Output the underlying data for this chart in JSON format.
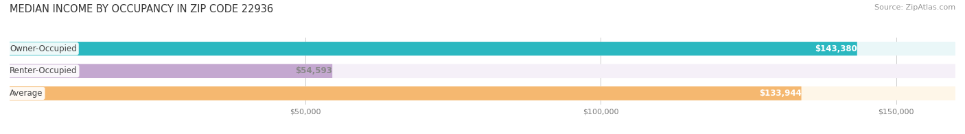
{
  "title": "MEDIAN INCOME BY OCCUPANCY IN ZIP CODE 22936",
  "source": "Source: ZipAtlas.com",
  "categories": [
    "Owner-Occupied",
    "Renter-Occupied",
    "Average"
  ],
  "values": [
    143380,
    54593,
    133944
  ],
  "bar_colors": [
    "#2BB8C0",
    "#C4A8D0",
    "#F5B870"
  ],
  "bar_bg_colors": [
    "#EAF7F8",
    "#F5F0F8",
    "#FEF6E8"
  ],
  "value_labels": [
    "$143,380",
    "$54,593",
    "$133,944"
  ],
  "value_label_colors": [
    "#ffffff",
    "#888888",
    "#ffffff"
  ],
  "x_max": 160000,
  "x_ticks": [
    50000,
    100000,
    150000
  ],
  "x_tick_labels": [
    "$50,000",
    "$100,000",
    "$150,000"
  ],
  "bar_height": 0.62,
  "figsize": [
    14.06,
    1.96
  ],
  "dpi": 100,
  "label_fontsize": 8.5,
  "tick_fontsize": 8,
  "title_fontsize": 10.5,
  "source_fontsize": 8,
  "category_label_color": "#444444",
  "bg_color": "#ffffff",
  "grid_color": "#cccccc"
}
